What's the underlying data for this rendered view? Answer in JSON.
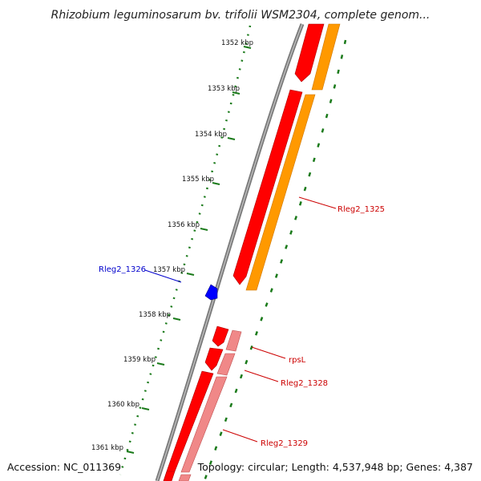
{
  "title": "Rhizobium leguminosarum bv. trifolii WSM2304, complete genom...",
  "ticks": [
    "1352 kbp",
    "1353 kbp",
    "1354 kbp",
    "1355 kbp",
    "1356 kbp",
    "1357 kbp",
    "1358 kbp",
    "1359 kbp",
    "1360 kbp",
    "1361 kbp"
  ],
  "genes": {
    "rleg2_1325": "Rleg2_1325",
    "rleg2_1326": "Rleg2_1326",
    "rpsL": "rpsL",
    "rleg2_1328": "Rleg2_1328",
    "rleg2_1329": "Rleg2_1329"
  },
  "footer": {
    "accession": "Accession: NC_011369",
    "topology": "Topology: circular; Length: 4,537,948 bp; Genes: 4,387"
  },
  "colors": {
    "backbone": "#777777",
    "ticks": "#1a7a1a",
    "forward_gene": "#ff0000",
    "cds_orange": "#ff9900",
    "rna_pink": "#f08888",
    "reverse_gene": "#0000ff",
    "label_red": "#cc0000",
    "label_blue": "#0000cc"
  }
}
